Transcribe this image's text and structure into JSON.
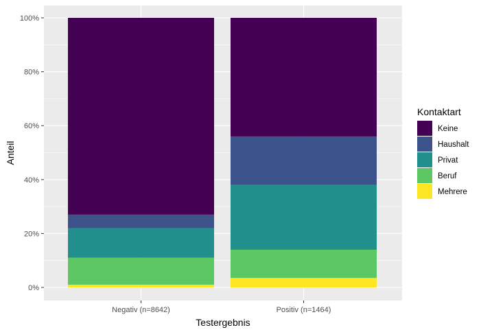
{
  "chart_data": {
    "type": "bar",
    "stacked": true,
    "categories": [
      "Negativ (n=8642)",
      "Positiv (n=1464)"
    ],
    "series": [
      {
        "name": "Mehrere",
        "values": [
          0.01,
          0.035
        ],
        "color": "#FDE725"
      },
      {
        "name": "Beruf",
        "values": [
          0.1,
          0.105
        ],
        "color": "#5DC863"
      },
      {
        "name": "Privat",
        "values": [
          0.11,
          0.24
        ],
        "color": "#21908C"
      },
      {
        "name": "Haushalt",
        "values": [
          0.05,
          0.18
        ],
        "color": "#3B528B"
      },
      {
        "name": "Keine",
        "values": [
          0.73,
          0.44
        ],
        "color": "#440154"
      }
    ],
    "xlabel": "Testergebnis",
    "ylabel": "Anteil",
    "ylim": [
      0,
      1
    ],
    "y_ticks": [
      0,
      0.2,
      0.4,
      0.6,
      0.8,
      1.0
    ],
    "y_tick_labels": [
      "0%",
      "20%",
      "40%",
      "60%",
      "80%",
      "100%"
    ],
    "legend": {
      "title": "Kontaktart",
      "placement": "right",
      "order": [
        "Keine",
        "Haushalt",
        "Privat",
        "Beruf",
        "Mehrere"
      ]
    },
    "grid": true,
    "panel_background": "#EBEBEB",
    "grid_color": "#FFFFFF"
  }
}
